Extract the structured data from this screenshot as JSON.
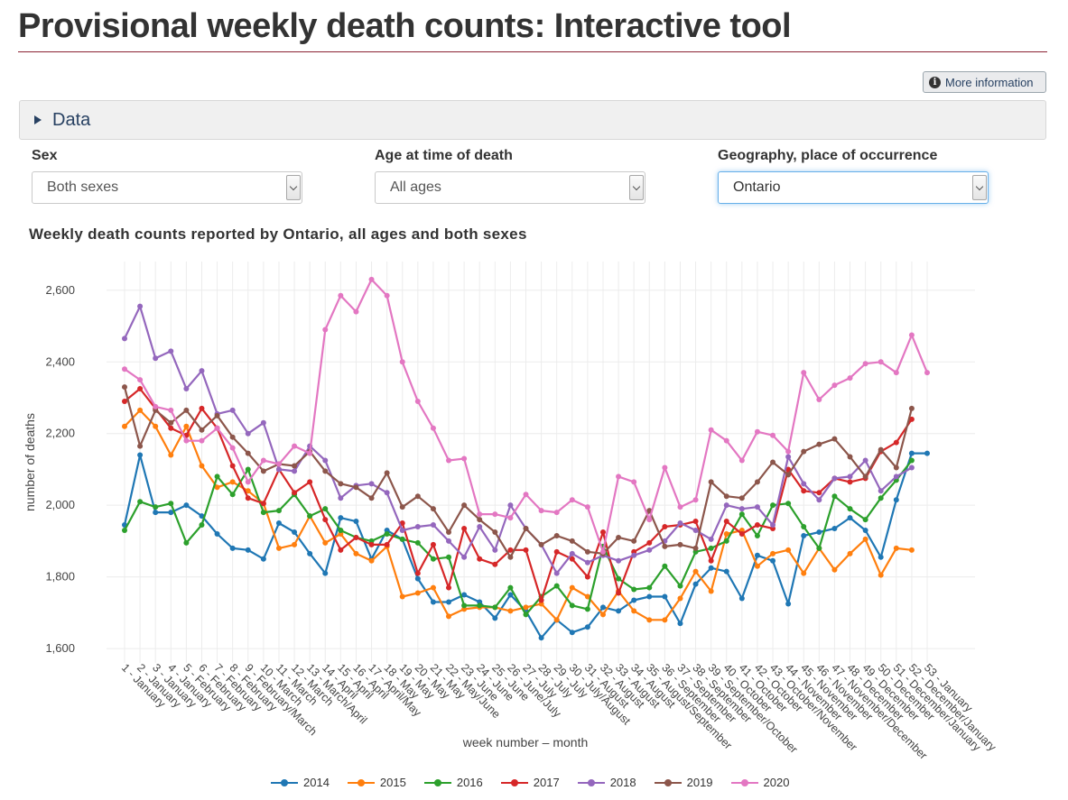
{
  "page": {
    "title": "Provisional weekly death counts: Interactive tool",
    "more_info_label": "More information",
    "data_panel_label": "Data"
  },
  "filters": {
    "sex": {
      "label": "Sex",
      "value": "Both sexes"
    },
    "age": {
      "label": "Age at time of death",
      "value": "All ages"
    },
    "geography": {
      "label": "Geography, place of occurrence",
      "value": "Ontario"
    }
  },
  "colors": {
    "title_rule": "#8a2232",
    "link": "#284162",
    "gridline": "#ececec"
  },
  "chart_data": {
    "type": "line",
    "title": "Weekly death counts reported by Ontario, all ages and both sexes",
    "xlabel": "week number – month",
    "ylabel": "number of deaths",
    "ylim": [
      1560,
      2680
    ],
    "yticks": [
      1600,
      1800,
      2000,
      2200,
      2400,
      2600
    ],
    "grid": true,
    "legend_position": "bottom",
    "categories": [
      "1 - January",
      "2 - January",
      "3 - January",
      "4 - January",
      "5 - February",
      "6 - February",
      "7 - February",
      "8 - February",
      "9 - February/March",
      "10 - March",
      "11 - March",
      "12 - March",
      "13 - March/April",
      "14 - April",
      "15 - April",
      "16 - April",
      "17 - April/May",
      "18 - May",
      "19 - May",
      "20 - May",
      "21 - May",
      "22 - May/June",
      "23 - June",
      "24 - June",
      "25 - June",
      "26 - June/July",
      "27 - July",
      "28 - July",
      "29 - July",
      "30 - July/August",
      "31 - August",
      "32 - August",
      "33 - August",
      "34 - August",
      "35 - August/September",
      "36 - September",
      "37 - September",
      "38 - September",
      "39 - September/October",
      "40 - October",
      "41 - October",
      "42 - October",
      "43 - October/November",
      "44 - November",
      "45 - November",
      "46 - November",
      "47 - November/December",
      "48 - December",
      "49 - December",
      "50 - December",
      "51 - December/January",
      "52 - December/January",
      "53 - January"
    ],
    "series": [
      {
        "name": "2014",
        "color": "#1f77b4",
        "values": [
          1945,
          2140,
          1980,
          1980,
          2000,
          1970,
          1920,
          1880,
          1875,
          1850,
          1950,
          1925,
          1865,
          1810,
          1965,
          1955,
          1850,
          1930,
          1905,
          1795,
          1730,
          1730,
          1750,
          1730,
          1685,
          1750,
          1705,
          1630,
          1680,
          1645,
          1660,
          1715,
          1705,
          1735,
          1745,
          1745,
          1670,
          1780,
          1825,
          1815,
          1740,
          1860,
          1845,
          1725,
          1915,
          1925,
          1935,
          1965,
          1930,
          1855,
          2015,
          2145,
          2145
        ]
      },
      {
        "name": "2015",
        "color": "#ff7f0e",
        "values": [
          2220,
          2265,
          2220,
          2140,
          2220,
          2110,
          2050,
          2065,
          2040,
          2005,
          1880,
          1890,
          1970,
          1895,
          1920,
          1865,
          1845,
          1885,
          1745,
          1755,
          1770,
          1690,
          1710,
          1715,
          1715,
          1705,
          1715,
          1725,
          1680,
          1770,
          1745,
          1695,
          1760,
          1705,
          1680,
          1680,
          1740,
          1815,
          1760,
          1920,
          1930,
          1830,
          1865,
          1875,
          1810,
          1880,
          1820,
          1865,
          1905,
          1805,
          1880,
          1875,
          null
        ]
      },
      {
        "name": "2016",
        "color": "#2ca02c",
        "values": [
          1930,
          2010,
          1995,
          2005,
          1895,
          1945,
          2080,
          2030,
          2100,
          1980,
          1985,
          2030,
          1970,
          1990,
          1930,
          1910,
          1900,
          1920,
          1905,
          1895,
          1850,
          1855,
          1720,
          1720,
          1715,
          1770,
          1695,
          1745,
          1775,
          1720,
          1710,
          1885,
          1795,
          1765,
          1770,
          1830,
          1775,
          1870,
          1880,
          1900,
          1975,
          1915,
          2000,
          2005,
          1940,
          1880,
          2025,
          1990,
          1960,
          2020,
          2070,
          2125,
          null
        ]
      },
      {
        "name": "2017",
        "color": "#d62728",
        "values": [
          2290,
          2325,
          2270,
          2215,
          2195,
          2270,
          2215,
          2110,
          2020,
          2005,
          2100,
          2035,
          2065,
          1960,
          1875,
          1910,
          1890,
          1890,
          1950,
          1810,
          1890,
          1770,
          1935,
          1850,
          1835,
          1875,
          1875,
          1735,
          1870,
          1850,
          1800,
          1925,
          1755,
          1870,
          1895,
          1940,
          1945,
          1955,
          1845,
          1955,
          1920,
          1945,
          1935,
          2100,
          2040,
          2035,
          2075,
          2065,
          2075,
          2150,
          2175,
          2240,
          null
        ]
      },
      {
        "name": "2018",
        "color": "#9467bd",
        "values": [
          2465,
          2555,
          2410,
          2430,
          2325,
          2375,
          2255,
          2265,
          2200,
          2230,
          2100,
          2095,
          2165,
          2125,
          2020,
          2055,
          2060,
          2035,
          1930,
          1940,
          1945,
          1900,
          1855,
          1940,
          1875,
          2000,
          1935,
          1890,
          1810,
          1865,
          1840,
          1860,
          1845,
          1860,
          1875,
          1900,
          1950,
          1930,
          1905,
          2000,
          1990,
          1995,
          1945,
          2135,
          2060,
          2015,
          2075,
          2080,
          2125,
          2040,
          2080,
          2105,
          null
        ]
      },
      {
        "name": "2019",
        "color": "#8c564b",
        "values": [
          2330,
          2165,
          2265,
          2230,
          2265,
          2210,
          2250,
          2190,
          2145,
          2095,
          2115,
          2110,
          2150,
          2095,
          2060,
          2050,
          2020,
          2090,
          1995,
          2025,
          1990,
          1925,
          2000,
          1960,
          1925,
          1855,
          1935,
          1890,
          1915,
          1900,
          1870,
          1865,
          1910,
          1900,
          1985,
          1885,
          1890,
          1880,
          2065,
          2025,
          2020,
          2065,
          2120,
          2085,
          2150,
          2170,
          2185,
          2135,
          2080,
          2155,
          2105,
          2270,
          null
        ]
      },
      {
        "name": "2020",
        "color": "#e377c2",
        "values": [
          2380,
          2350,
          2275,
          2265,
          2180,
          2180,
          2215,
          2160,
          2065,
          2125,
          2115,
          2165,
          2145,
          2490,
          2585,
          2540,
          2630,
          2585,
          2400,
          2290,
          2215,
          2125,
          2130,
          1975,
          1975,
          1965,
          2030,
          1985,
          1980,
          2015,
          1995,
          1870,
          2080,
          2065,
          1960,
          2105,
          1995,
          2015,
          2210,
          2180,
          2125,
          2205,
          2195,
          2150,
          2370,
          2295,
          2335,
          2355,
          2395,
          2400,
          2370,
          2475,
          2370
        ]
      }
    ]
  }
}
